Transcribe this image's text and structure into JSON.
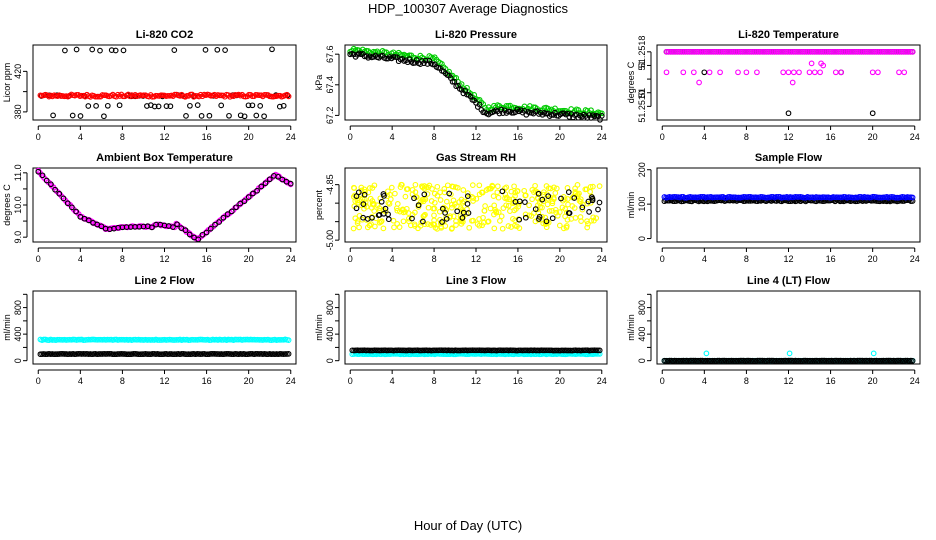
{
  "figure": {
    "title": "HDP_100307  Average Diagnostics",
    "xlabel": "Hour of Day (UTC)"
  },
  "chart_data": [
    {
      "type": "scatter",
      "title": "Li-820 CO2",
      "ylabel": "Licor ppm",
      "xticks": [
        0,
        4,
        8,
        12,
        16,
        20,
        24
      ],
      "xlim": [
        -0.5,
        24.5
      ],
      "ylim": [
        372,
        446
      ],
      "yticks": [
        380,
        400,
        420
      ],
      "ytick_labels": [
        "380",
        "",
        "420"
      ],
      "series": [
        {
          "name": "black",
          "color": "#000000",
          "pattern": "co2_black"
        },
        {
          "name": "red",
          "color": "#ff0000",
          "pattern": "flat",
          "value": 396,
          "noise": 1.2
        }
      ]
    },
    {
      "type": "scatter",
      "title": "Li-820 Pressure",
      "ylabel": "kPa",
      "xticks": [
        0,
        4,
        8,
        12,
        16,
        20,
        24
      ],
      "xlim": [
        -0.5,
        24.5
      ],
      "ylim": [
        67.17,
        67.66
      ],
      "yticks": [
        67.2,
        67.4,
        67.6
      ],
      "ytick_labels": [
        "67.2",
        "67.4",
        "67.6"
      ],
      "series": [
        {
          "name": "green",
          "color": "#00cc00",
          "pattern": "pressure",
          "offset": 0.0
        },
        {
          "name": "black",
          "color": "#000000",
          "pattern": "pressure",
          "offset": -0.03
        }
      ]
    },
    {
      "type": "scatter",
      "title": "Li-820 Temperature",
      "ylabel": "degrees C",
      "xticks": [
        0,
        4,
        8,
        12,
        16,
        20,
        24
      ],
      "xlim": [
        -0.5,
        24.5
      ],
      "ylim": [
        51.2508,
        51.2519
      ],
      "yticks": [
        51.251,
        51.2512,
        51.2514,
        51.2516,
        51.2518
      ],
      "ytick_labels": [
        "51.2510",
        "51",
        "",
        "51",
        "51.2518"
      ],
      "series": [
        {
          "name": "black",
          "color": "#000000",
          "pattern": "temp_black"
        },
        {
          "name": "magenta",
          "color": "#ff00ff",
          "pattern": "temp_magenta"
        }
      ]
    },
    {
      "type": "scatter",
      "title": "Ambient Box Temperature",
      "ylabel": "degrees C",
      "xticks": [
        0,
        4,
        8,
        12,
        16,
        20,
        24
      ],
      "xlim": [
        -0.5,
        24.5
      ],
      "ylim": [
        8.85,
        11.15
      ],
      "yticks": [
        9.0,
        9.5,
        10.0,
        10.5,
        11.0
      ],
      "ytick_labels": [
        "9.0",
        "",
        "10.0",
        "",
        "11.0"
      ],
      "series": [
        {
          "name": "magenta",
          "color": "#ff00ff",
          "pattern": "ambient",
          "offset": 0.0
        },
        {
          "name": "black",
          "color": "#000000",
          "pattern": "ambient",
          "offset": 0.0
        }
      ]
    },
    {
      "type": "scatter",
      "title": "Gas Stream RH",
      "ylabel": "percent",
      "xticks": [
        0,
        4,
        8,
        12,
        16,
        20,
        24
      ],
      "xlim": [
        -0.5,
        24.5
      ],
      "ylim": [
        -5.005,
        -4.805
      ],
      "yticks": [
        -5.0,
        -4.95,
        -4.9,
        -4.85
      ],
      "ytick_labels": [
        "-5.00",
        "",
        "",
        "-4.85"
      ],
      "series": [
        {
          "name": "yellow",
          "color": "#ffff00",
          "pattern": "rh",
          "spread": 0.06,
          "n": 380
        },
        {
          "name": "black",
          "color": "#000000",
          "pattern": "rh",
          "spread": 0.045,
          "n": 60
        }
      ]
    },
    {
      "type": "scatter",
      "title": "Sample Flow",
      "ylabel": "ml/min",
      "xticks": [
        0,
        4,
        8,
        12,
        16,
        20,
        24
      ],
      "xlim": [
        -0.5,
        24.5
      ],
      "ylim": [
        -10,
        205
      ],
      "yticks": [
        0,
        100,
        200
      ],
      "ytick_labels": [
        "0",
        "100",
        "200"
      ],
      "series": [
        {
          "name": "black",
          "color": "#000000",
          "pattern": "flat",
          "value": 110,
          "noise": 2
        },
        {
          "name": "blue",
          "color": "#0000ff",
          "pattern": "flat",
          "value": 120,
          "noise": 1.5
        }
      ]
    },
    {
      "type": "scatter",
      "title": "Line 2 Flow",
      "ylabel": "ml/min",
      "xticks": [
        0,
        4,
        8,
        12,
        16,
        20,
        24
      ],
      "xlim": [
        -0.5,
        24.5
      ],
      "ylim": [
        -50,
        1050
      ],
      "yticks": [
        0,
        200,
        400,
        600,
        800,
        1000
      ],
      "ytick_labels": [
        "0",
        "",
        "400",
        "",
        "800",
        ""
      ],
      "series": [
        {
          "name": "cyan",
          "color": "#00ffff",
          "pattern": "flat",
          "value": 315,
          "noise": 5
        },
        {
          "name": "black",
          "color": "#000000",
          "pattern": "flat",
          "value": 100,
          "noise": 3
        }
      ]
    },
    {
      "type": "scatter",
      "title": "Line 3 Flow",
      "ylabel": "ml/min",
      "xticks": [
        0,
        4,
        8,
        12,
        16,
        20,
        24
      ],
      "xlim": [
        -0.5,
        24.5
      ],
      "ylim": [
        -50,
        1050
      ],
      "yticks": [
        0,
        200,
        400,
        600,
        800,
        1000
      ],
      "ytick_labels": [
        "0",
        "",
        "400",
        "",
        "800",
        ""
      ],
      "series": [
        {
          "name": "cyan",
          "color": "#00ffff",
          "pattern": "flat",
          "value": 100,
          "noise": 4
        },
        {
          "name": "black",
          "color": "#000000",
          "pattern": "flat",
          "value": 155,
          "noise": 3
        }
      ]
    },
    {
      "type": "scatter",
      "title": "Line 4 (LT) Flow",
      "ylabel": "ml/min",
      "xticks": [
        0,
        4,
        8,
        12,
        16,
        20,
        24
      ],
      "xlim": [
        -0.5,
        24.5
      ],
      "ylim": [
        -50,
        1050
      ],
      "yticks": [
        0,
        200,
        400,
        600,
        800,
        1000
      ],
      "ytick_labels": [
        "0",
        "",
        "400",
        "",
        "800",
        ""
      ],
      "series": [
        {
          "name": "cyan",
          "color": "#00ffff",
          "pattern": "line4_cyan"
        },
        {
          "name": "black",
          "color": "#000000",
          "pattern": "flat",
          "value": 0,
          "noise": 2
        }
      ]
    }
  ]
}
